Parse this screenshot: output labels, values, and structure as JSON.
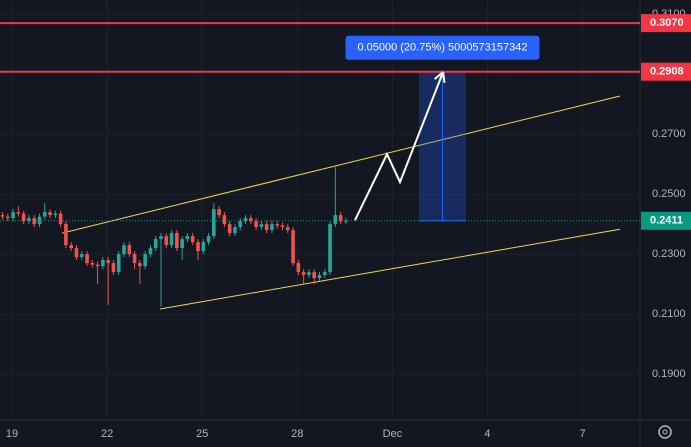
{
  "chart_data": {
    "type": "candlestick",
    "x": [
      -0.3,
      -0.133,
      0.033,
      0.2,
      0.367,
      0.533,
      0.7,
      0.867,
      1.033,
      1.2,
      1.367,
      1.533,
      1.7,
      1.867,
      2.033,
      2.2,
      2.367,
      2.533,
      2.7,
      2.867,
      3.033,
      3.2,
      3.367,
      3.533,
      3.7,
      3.867,
      4.033,
      4.2,
      4.367,
      4.533,
      4.7,
      4.867,
      5.033,
      5.2,
      5.367,
      5.533,
      5.7,
      5.867,
      6.033,
      6.2,
      6.367,
      6.533,
      6.7,
      6.867,
      7.033,
      7.2,
      7.367,
      7.533,
      7.7,
      7.867,
      8.033,
      8.2,
      8.367,
      8.533,
      8.7,
      8.867,
      9.033,
      9.2,
      9.367,
      9.533,
      9.7,
      9.867,
      10.033,
      10.2,
      10.367,
      10.533
    ],
    "open": [
      0.243,
      0.2425,
      0.242,
      0.244,
      0.2435,
      0.241,
      0.242,
      0.24,
      0.2425,
      0.244,
      0.243,
      0.2435,
      0.24,
      0.233,
      0.232,
      0.229,
      0.23,
      0.227,
      0.2265,
      0.226,
      0.228,
      0.227,
      0.224,
      0.23,
      0.233,
      0.23,
      0.227,
      0.226,
      0.23,
      0.232,
      0.235,
      0.236,
      0.233,
      0.237,
      0.232,
      0.235,
      0.236,
      0.234,
      0.231,
      0.234,
      0.236,
      0.245,
      0.243,
      0.24,
      0.237,
      0.239,
      0.241,
      0.242,
      0.241,
      0.239,
      0.24,
      0.238,
      0.24,
      0.2395,
      0.239,
      0.238,
      0.227,
      0.224,
      0.223,
      0.224,
      0.222,
      0.223,
      0.224,
      0.24,
      0.243,
      0.241
    ],
    "high": [
      0.244,
      0.2435,
      0.245,
      0.246,
      0.2445,
      0.243,
      0.243,
      0.2435,
      0.247,
      0.245,
      0.2445,
      0.2445,
      0.241,
      0.234,
      0.233,
      0.231,
      0.231,
      0.228,
      0.2275,
      0.229,
      0.229,
      0.228,
      0.231,
      0.234,
      0.234,
      0.231,
      0.228,
      0.231,
      0.233,
      0.236,
      0.237,
      0.237,
      0.238,
      0.238,
      0.236,
      0.237,
      0.237,
      0.235,
      0.235,
      0.237,
      0.247,
      0.246,
      0.244,
      0.241,
      0.24,
      0.242,
      0.243,
      0.243,
      0.242,
      0.241,
      0.241,
      0.241,
      0.241,
      0.2405,
      0.24,
      0.239,
      0.228,
      0.225,
      0.225,
      0.225,
      0.224,
      0.225,
      0.241,
      0.259,
      0.244,
      0.242
    ],
    "low": [
      0.2415,
      0.241,
      0.241,
      0.2425,
      0.24,
      0.24,
      0.239,
      0.239,
      0.2415,
      0.242,
      0.242,
      0.239,
      0.232,
      0.231,
      0.228,
      0.228,
      0.226,
      0.2255,
      0.22,
      0.225,
      0.213,
      0.223,
      0.223,
      0.229,
      0.229,
      0.225,
      0.22,
      0.225,
      0.229,
      0.231,
      0.2125,
      0.232,
      0.232,
      0.231,
      0.228,
      0.234,
      0.233,
      0.228,
      0.23,
      0.233,
      0.235,
      0.242,
      0.239,
      0.236,
      0.236,
      0.238,
      0.24,
      0.24,
      0.238,
      0.238,
      0.237,
      0.237,
      0.2385,
      0.238,
      0.237,
      0.226,
      0.223,
      0.22,
      0.222,
      0.22,
      0.221,
      0.222,
      0.223,
      0.239,
      0.24,
      0.24
    ],
    "close": [
      0.2425,
      0.242,
      0.244,
      0.2435,
      0.241,
      0.242,
      0.24,
      0.2425,
      0.244,
      0.243,
      0.2435,
      0.24,
      0.233,
      0.232,
      0.229,
      0.23,
      0.227,
      0.2265,
      0.226,
      0.228,
      0.227,
      0.224,
      0.23,
      0.233,
      0.23,
      0.227,
      0.226,
      0.23,
      0.232,
      0.235,
      0.236,
      0.233,
      0.237,
      0.232,
      0.235,
      0.236,
      0.234,
      0.231,
      0.234,
      0.236,
      0.245,
      0.243,
      0.24,
      0.237,
      0.239,
      0.241,
      0.242,
      0.241,
      0.239,
      0.24,
      0.238,
      0.24,
      0.2395,
      0.239,
      0.238,
      0.227,
      0.224,
      0.223,
      0.224,
      0.222,
      0.223,
      0.224,
      0.24,
      0.243,
      0.241,
      0.2411
    ],
    "up_color": "#26a69a",
    "down_color": "#ef5350",
    "xlim": [
      -0.379,
      19.811
    ],
    "xticks": [
      {
        "value": 0,
        "label": "19"
      },
      {
        "value": 3,
        "label": "22"
      },
      {
        "value": 6,
        "label": "25"
      },
      {
        "value": 9,
        "label": "28"
      },
      {
        "value": 12,
        "label": "Dec"
      },
      {
        "value": 15,
        "label": "4"
      },
      {
        "value": 18,
        "label": "7"
      }
    ],
    "ylim": [
      0.1747,
      0.3147
    ],
    "yticks": [
      {
        "value": 0.31,
        "label": "0.3100"
      },
      {
        "value": 0.27,
        "label": "0.2700"
      },
      {
        "value": 0.25,
        "label": "0.2500"
      },
      {
        "value": 0.23,
        "label": "0.2300"
      },
      {
        "value": 0.21,
        "label": "0.2100"
      },
      {
        "value": 0.19,
        "label": "0.1900"
      }
    ],
    "grid": true,
    "horizontal_lines": [
      {
        "value": 0.307,
        "label": "0.3070",
        "color": "#f23645"
      },
      {
        "value": 0.2908,
        "label": "0.2908",
        "color": "#f23645"
      }
    ],
    "last_price": {
      "value": 0.2411,
      "label": "0.2411",
      "color": "#089981"
    },
    "channel_color": "#f0d84a",
    "channel": [
      {
        "x": [
          1.58,
          19.18
        ],
        "y": [
          0.237,
          0.2827
        ]
      },
      {
        "x": [
          4.67,
          19.18
        ],
        "y": [
          0.2117,
          0.2383
        ]
      }
    ],
    "projection": {
      "x": [
        10.82,
        11.83,
        12.24,
        13.6
      ],
      "y": [
        0.2413,
        0.2633,
        0.254,
        0.2907
      ]
    },
    "measure": {
      "x": [
        12.84,
        14.32
      ],
      "y": [
        0.2411,
        0.2908
      ],
      "label": "0.05000 (20.75%) 5000573157342"
    }
  }
}
